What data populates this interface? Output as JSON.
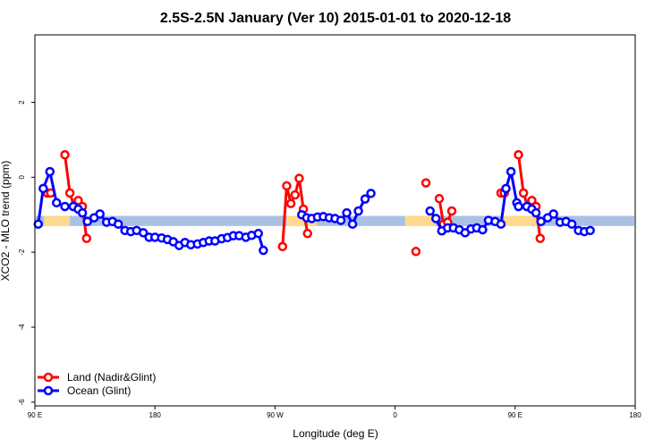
{
  "chart_data": {
    "type": "line",
    "title": "2.5S-2.5N January (Ver 10)   2015-01-01 to 2020-12-18",
    "xlabel": "Longitude (deg E)",
    "ylabel": "XCO2 - MLO trend (ppm)",
    "xlim": [
      90,
      450
    ],
    "ylim": [
      -6.1,
      3.8
    ],
    "x_ticks": [
      {
        "value": 90,
        "label": "90 E"
      },
      {
        "value": 162,
        "label": "180"
      },
      {
        "value": 234,
        "label": "90 W"
      },
      {
        "value": 306,
        "label": "0"
      },
      {
        "value": 378,
        "label": "90 E"
      },
      {
        "value": 450,
        "label": "180"
      }
    ],
    "y_ticks": [
      {
        "value": 2,
        "label": "2"
      },
      {
        "value": 0,
        "label": "0"
      },
      {
        "value": -2,
        "label": "-2"
      },
      {
        "value": -4,
        "label": "-4"
      },
      {
        "value": -6,
        "label": "-6"
      }
    ],
    "grid": false,
    "legend_position": "bottom-left",
    "reference_band": {
      "y_min": -1.3,
      "y_max": -1.03,
      "color": "#a9c1e4",
      "land_color": "#fed98e",
      "land_spans": [
        [
          95.5,
          111
        ],
        [
          241,
          259
        ],
        [
          312,
          330
        ],
        [
          369.5,
          391.5
        ]
      ]
    },
    "series": [
      {
        "name": "Land (Nadir&Glint)",
        "color": "#ff0000",
        "points": [
          [
            97.5,
            -0.42
          ],
          [
            99.5,
            -0.42
          ],
          null,
          [
            108,
            0.6
          ],
          [
            111,
            -0.42
          ],
          [
            113.5,
            -0.78
          ],
          [
            116,
            -0.62
          ],
          [
            118.5,
            -0.78
          ],
          [
            121,
            -1.63
          ],
          null,
          [
            238.5,
            -1.85
          ],
          [
            241,
            -0.23
          ],
          [
            243.5,
            -0.7
          ],
          [
            246,
            -0.47
          ],
          [
            248.5,
            -0.03
          ],
          [
            251,
            -0.85
          ],
          [
            253.5,
            -1.5
          ],
          null,
          [
            318.5,
            -1.98
          ],
          null,
          [
            324.5,
            -0.15
          ],
          null,
          [
            332.5,
            -0.57
          ],
          [
            335,
            -1.25
          ],
          [
            337.5,
            -1.2
          ],
          [
            340,
            -0.9
          ],
          null,
          [
            369.5,
            -0.42
          ],
          [
            371.5,
            -0.42
          ],
          null,
          [
            380,
            0.6
          ],
          [
            383,
            -0.42
          ],
          [
            385.5,
            -0.78
          ],
          [
            388,
            -0.62
          ],
          [
            390.5,
            -0.78
          ],
          [
            393,
            -1.63
          ]
        ]
      },
      {
        "name": "Ocean (Glint)",
        "color": "#0000ff",
        "points": [
          [
            92,
            -1.25
          ],
          [
            95,
            -0.3
          ],
          [
            99,
            0.15
          ],
          [
            103,
            -0.68
          ],
          null,
          [
            108,
            -0.78
          ],
          [
            113,
            -0.78
          ],
          [
            116,
            -0.85
          ],
          [
            118.5,
            -0.95
          ],
          [
            121.5,
            -1.18
          ],
          [
            125.5,
            -1.08
          ],
          [
            129,
            -0.98
          ],
          [
            133,
            -1.2
          ],
          [
            136.5,
            -1.18
          ],
          [
            140,
            -1.25
          ],
          [
            144,
            -1.42
          ],
          [
            147.5,
            -1.45
          ],
          [
            151,
            -1.42
          ],
          [
            155,
            -1.48
          ],
          [
            158.5,
            -1.6
          ],
          [
            162,
            -1.6
          ],
          [
            166,
            -1.62
          ],
          [
            169.5,
            -1.66
          ],
          [
            173,
            -1.72
          ],
          [
            176.5,
            -1.82
          ],
          [
            180,
            -1.74
          ],
          [
            183.5,
            -1.8
          ],
          [
            187.5,
            -1.78
          ],
          [
            191,
            -1.74
          ],
          [
            194.5,
            -1.7
          ],
          [
            198,
            -1.7
          ],
          [
            202,
            -1.64
          ],
          [
            205.5,
            -1.61
          ],
          [
            209,
            -1.56
          ],
          [
            212.5,
            -1.56
          ],
          [
            216.5,
            -1.6
          ],
          [
            220,
            -1.55
          ],
          [
            224,
            -1.5
          ],
          [
            227,
            -1.95
          ],
          null,
          [
            250,
            -1.0
          ],
          [
            253,
            -1.08
          ],
          [
            256,
            -1.1
          ],
          [
            259.5,
            -1.06
          ],
          [
            263,
            -1.05
          ],
          [
            266.5,
            -1.08
          ],
          [
            270,
            -1.1
          ],
          [
            273.5,
            -1.15
          ],
          [
            277,
            -0.95
          ],
          [
            280.5,
            -1.25
          ],
          [
            284,
            -0.9
          ],
          [
            288,
            -0.58
          ],
          [
            291.5,
            -0.43
          ],
          null,
          [
            327,
            -0.9
          ],
          [
            330.5,
            -1.1
          ],
          [
            334,
            -1.43
          ],
          [
            337.5,
            -1.35
          ],
          [
            341,
            -1.35
          ],
          [
            344.5,
            -1.4
          ],
          [
            348,
            -1.48
          ],
          [
            351.5,
            -1.38
          ],
          [
            355,
            -1.35
          ],
          [
            358.5,
            -1.4
          ],
          [
            362,
            -1.15
          ],
          [
            366,
            -1.18
          ],
          [
            369.5,
            -1.25
          ],
          [
            372.5,
            -0.3
          ],
          [
            375.5,
            0.15
          ],
          [
            379,
            -0.68
          ],
          null,
          [
            380,
            -0.78
          ],
          [
            385,
            -0.78
          ],
          [
            388,
            -0.85
          ],
          [
            390.5,
            -0.95
          ],
          [
            393.5,
            -1.18
          ],
          [
            397.5,
            -1.08
          ],
          [
            401,
            -0.98
          ],
          [
            405,
            -1.2
          ],
          [
            408.5,
            -1.18
          ],
          [
            412,
            -1.25
          ],
          [
            416,
            -1.42
          ],
          [
            419.5,
            -1.45
          ],
          [
            423,
            -1.42
          ]
        ]
      }
    ]
  }
}
